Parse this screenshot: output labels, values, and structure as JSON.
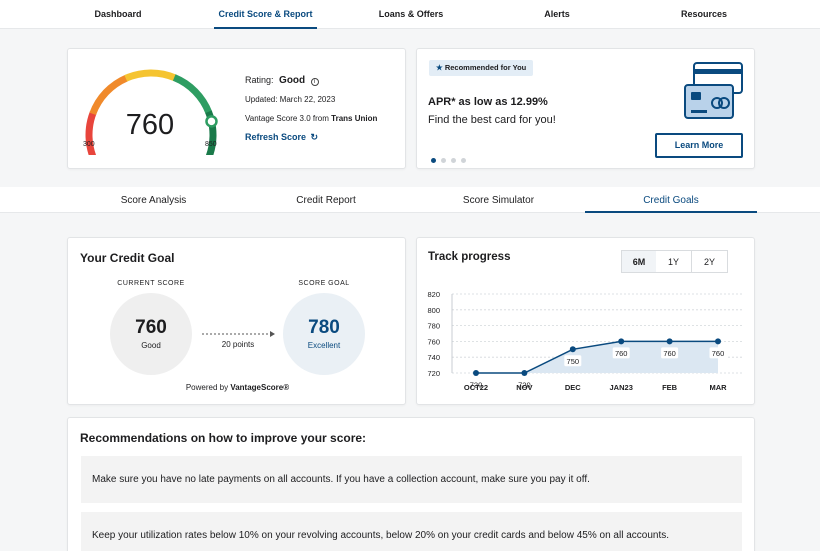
{
  "nav": {
    "items": [
      "Dashboard",
      "Credit Score & Report",
      "Loans & Offers",
      "Alerts",
      "Resources"
    ],
    "active_index": 1
  },
  "score_card": {
    "score": "760",
    "min": "300",
    "max": "850",
    "gauge_fraction": 0.836,
    "rating_label": "Rating:",
    "rating_value": "Good",
    "updated": "Updated: March 22, 2023",
    "vantage_prefix": "Vantage Score 3.0 from",
    "vantage_bureau": "Trans Union",
    "refresh_label": "Refresh Score",
    "gauge_colors": [
      "#e8453c",
      "#f08a2b",
      "#f5c431",
      "#2e9d62",
      "#1a7a4a"
    ]
  },
  "promo": {
    "badge": "Recommended for You",
    "headline": "APR* as low as 12.99%",
    "subline": "Find the best card for you!",
    "button": "Learn More",
    "dots_total": 4,
    "dots_active": 0
  },
  "tabs": {
    "items": [
      "Score Analysis",
      "Credit Report",
      "Score Simulator",
      "Credit Goals"
    ],
    "active_index": 3
  },
  "goal_card": {
    "title": "Your Credit Goal",
    "current_label": "CURRENT SCORE",
    "current_score": "760",
    "current_rating": "Good",
    "goal_label": "SCORE GOAL",
    "goal_score": "780",
    "goal_rating": "Excellent",
    "gap": "20 points",
    "powered_prefix": "Powered by",
    "powered_brand": "VantageScore®"
  },
  "track": {
    "title": "Track progress",
    "ranges": [
      "6M",
      "1Y",
      "2Y"
    ],
    "active_range": 0
  },
  "chart_data": {
    "type": "area",
    "categories": [
      "OCT22",
      "NOV",
      "DEC",
      "JAN23",
      "FEB",
      "MAR"
    ],
    "series": [
      {
        "values": [
          720,
          720,
          750,
          760,
          760,
          760
        ]
      }
    ],
    "data_labels": [
      "720",
      "720",
      "750",
      "760",
      "760",
      "760"
    ],
    "y_ticks": [
      720,
      740,
      760,
      780,
      800,
      820
    ],
    "ylim": [
      720,
      820
    ],
    "grid": true,
    "line_color": "#0a4a7f",
    "fill_color": "#dbe7f2"
  },
  "recommendations": {
    "title": "Recommendations on how to improve your score:",
    "items": [
      "Make sure you have no late payments on all accounts. If you have a collection account, make sure you pay it off.",
      "Keep your utilization rates below 10% on your revolving accounts, below 20% on your credit cards and below 45% on all accounts."
    ]
  }
}
